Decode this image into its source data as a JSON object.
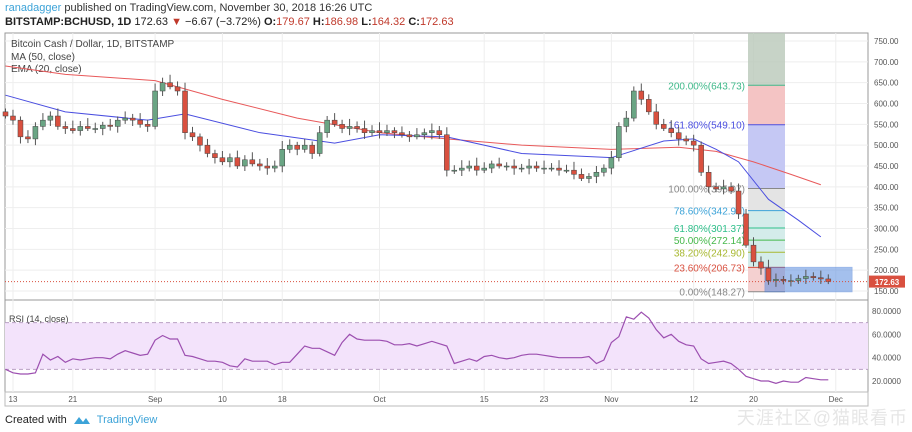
{
  "header": {
    "user": "ranadagger",
    "published": "published on TradingView.com, November 30, 2018 16:26 UTC",
    "symbol": "BITSTAMP:BCHUSD, 1D",
    "last": "172.63",
    "change": "−6.67 (−3.72%)",
    "o_label": "O:",
    "o": "179.67",
    "h_label": "H:",
    "h": "186.98",
    "l_label": "L:",
    "l": "164.32",
    "c_label": "C:",
    "c": "172.63"
  },
  "footer": {
    "created": "Created with",
    "brand": "TradingView",
    "watermark": "天涯社区@猫眼看币"
  },
  "colors": {
    "up": "#6aa584",
    "down": "#d9503f",
    "ma50": "#e8595a",
    "ema20": "#4a4ee0",
    "rsi": "#9c4fb0"
  },
  "chart_data": {
    "type": "candlestick",
    "title": "Bitcoin Cash / Dollar, 1D, BITSTAMP",
    "indicators": [
      "MA (50, close)",
      "EMA (20, close)"
    ],
    "start_date": "2018-08-12",
    "closes": [
      570,
      560,
      520,
      515,
      545,
      560,
      570,
      545,
      540,
      535,
      545,
      540,
      540,
      548,
      545,
      560,
      565,
      560,
      550,
      545,
      630,
      650,
      640,
      630,
      530,
      520,
      500,
      480,
      470,
      460,
      470,
      450,
      465,
      455,
      450,
      445,
      450,
      490,
      500,
      490,
      500,
      480,
      530,
      560,
      550,
      540,
      545,
      540,
      530,
      535,
      530,
      535,
      530,
      525,
      520,
      525,
      530,
      535,
      525,
      440,
      440,
      445,
      450,
      440,
      445,
      455,
      450,
      450,
      445,
      445,
      450,
      445,
      445,
      445,
      440,
      440,
      430,
      420,
      425,
      435,
      445,
      470,
      545,
      565,
      630,
      610,
      580,
      550,
      540,
      530,
      515,
      510,
      500,
      435,
      400,
      395,
      400,
      390,
      335,
      260,
      220,
      205,
      175,
      178,
      175,
      175,
      180,
      185,
      182,
      179,
      172.63
    ],
    "ma50": [
      [
        0,
        690
      ],
      [
        8,
        670
      ],
      [
        20,
        655
      ],
      [
        29,
        610
      ],
      [
        39,
        565
      ],
      [
        50,
        530
      ],
      [
        59,
        515
      ],
      [
        69,
        500
      ],
      [
        81,
        490
      ],
      [
        90,
        495
      ],
      [
        95,
        485
      ],
      [
        100,
        460
      ],
      [
        105,
        430
      ],
      [
        109,
        405
      ]
    ],
    "ema20": [
      [
        0,
        620
      ],
      [
        8,
        580
      ],
      [
        19,
        560
      ],
      [
        24,
        575
      ],
      [
        34,
        530
      ],
      [
        44,
        505
      ],
      [
        50,
        525
      ],
      [
        59,
        520
      ],
      [
        69,
        480
      ],
      [
        81,
        470
      ],
      [
        88,
        510
      ],
      [
        92,
        515
      ],
      [
        95,
        490
      ],
      [
        98,
        460
      ],
      [
        102,
        370
      ],
      [
        106,
        320
      ],
      [
        109,
        280
      ]
    ],
    "price_axis": {
      "min": 150,
      "max": 750,
      "step": 50,
      "ticks": [
        "750.00",
        "700.00",
        "650.00",
        "600.00",
        "550.00",
        "500.00",
        "450.00",
        "400.00",
        "350.00",
        "300.00",
        "250.00",
        "200.00",
        "150.00"
      ]
    },
    "last_price_label": "172.63",
    "fib": [
      {
        "level": "200.00%(643.73)",
        "value": 643.73,
        "color": "#3fb98a"
      },
      {
        "level": "161.80%(549.10)",
        "value": 549.1,
        "color": "#4a4ee0"
      },
      {
        "level": "100.00%(395.97)",
        "value": 395.97,
        "color": "#888888"
      },
      {
        "level": "78.60%(342.99)",
        "value": 342.99,
        "color": "#3ca3d8"
      },
      {
        "level": "61.80%(301.37)",
        "value": 301.37,
        "color": "#2ebf8a"
      },
      {
        "level": "50.00%(272.14)",
        "value": 272.14,
        "color": "#45b84a"
      },
      {
        "level": "38.20%(242.90)",
        "value": 242.9,
        "color": "#a8b830"
      },
      {
        "level": "23.60%(206.73)",
        "value": 206.73,
        "color": "#d9503f"
      },
      {
        "level": "0.00%(148.27)",
        "value": 148.27,
        "color": "#888888"
      }
    ],
    "rsi": {
      "label": "RSI (14, close)",
      "ticks": [
        "80.0000",
        "60.0000",
        "40.0000",
        "20.0000"
      ],
      "band": [
        30,
        70
      ],
      "values": [
        30,
        27,
        26,
        26,
        27,
        43,
        38,
        41,
        36,
        39,
        38,
        39,
        40,
        40,
        39,
        43,
        46,
        44,
        42,
        43,
        55,
        59,
        56,
        56,
        42,
        41,
        39,
        37,
        37,
        36,
        33,
        32,
        39,
        37,
        37,
        37,
        34,
        36,
        36,
        43,
        50,
        48,
        48,
        45,
        42,
        53,
        60,
        56,
        55,
        55,
        55,
        54,
        51,
        51,
        52,
        50,
        52,
        54,
        52,
        50,
        35,
        37,
        39,
        37,
        41,
        42,
        40,
        39,
        40,
        42,
        43,
        43,
        42,
        41,
        40,
        40,
        40,
        40,
        41,
        35,
        38,
        53,
        58,
        75,
        73,
        79,
        74,
        64,
        57,
        60,
        54,
        51,
        50,
        39,
        35,
        36,
        37,
        35,
        30,
        24,
        22,
        20,
        20,
        18,
        20,
        19,
        19,
        23,
        22,
        21,
        21
      ]
    },
    "x_ticks": [
      {
        "label": "13",
        "day": 1
      },
      {
        "label": "21",
        "day": 9
      },
      {
        "label": "Sep",
        "day": 20
      },
      {
        "label": "10",
        "day": 29
      },
      {
        "label": "18",
        "day": 37
      },
      {
        "label": "Oct",
        "day": 50
      },
      {
        "label": "15",
        "day": 64
      },
      {
        "label": "23",
        "day": 72
      },
      {
        "label": "Nov",
        "day": 81
      },
      {
        "label": "12",
        "day": 92
      },
      {
        "label": "20",
        "day": 100
      },
      {
        "label": "Dec",
        "day": 111
      }
    ]
  }
}
